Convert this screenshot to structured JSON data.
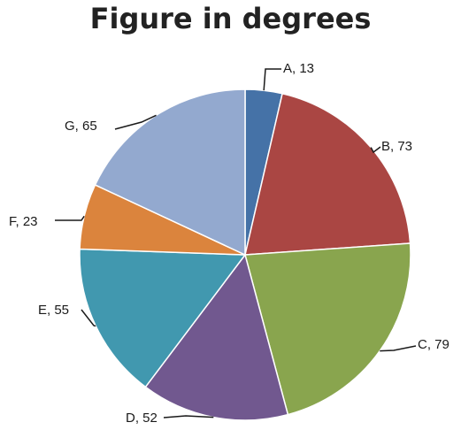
{
  "chart_data": {
    "type": "pie",
    "title": "Figure in degrees",
    "categories": [
      "A",
      "B",
      "C",
      "D",
      "E",
      "F",
      "G"
    ],
    "values": [
      13,
      73,
      79,
      52,
      55,
      23,
      65
    ],
    "data_labels": [
      "A, 13",
      "B, 73",
      "C, 79",
      "D, 52",
      "E, 55",
      "F, 23",
      "G, 65"
    ],
    "colors": [
      "#4572A7",
      "#AA4643",
      "#89A54E",
      "#71588F",
      "#4198AF",
      "#DB843D",
      "#93A9CF"
    ],
    "legend": "none",
    "start_angle": "12 o'clock",
    "direction": "clockwise"
  }
}
